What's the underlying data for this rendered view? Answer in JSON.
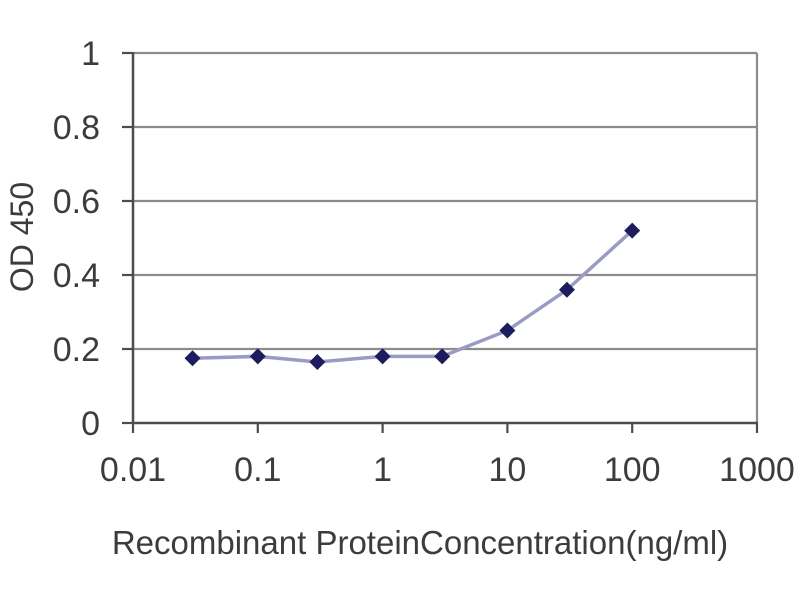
{
  "chart_data": {
    "type": "line",
    "title": "",
    "xlabel": "Recombinant ProteinConcentration(ng/ml)",
    "ylabel": "OD 450",
    "x_scale": "log",
    "y_scale": "linear",
    "xlim": [
      0.01,
      1000
    ],
    "ylim": [
      0,
      1
    ],
    "x": [
      0.03,
      0.1,
      0.3,
      1,
      3,
      10,
      30,
      100
    ],
    "y": [
      0.175,
      0.18,
      0.165,
      0.18,
      0.18,
      0.25,
      0.36,
      0.52
    ],
    "x_tick_values": [
      0.01,
      0.1,
      1,
      10,
      100,
      1000
    ],
    "x_tick_labels": [
      "0.01",
      "0.1",
      "1",
      "10",
      "100",
      "1000"
    ],
    "y_tick_values": [
      0,
      0.2,
      0.4,
      0.6,
      0.8,
      1
    ],
    "y_tick_labels": [
      "0",
      "0.2",
      "0.4",
      "0.6",
      "0.8",
      "1"
    ],
    "grid": "horizontal",
    "legend": "none",
    "marker_shape": "diamond",
    "colors": {
      "background": "#ffffff",
      "marker": "#1c1c5e",
      "line": "#9a9bc4",
      "grid": "#8c8c8c",
      "axis": "#4d4d4d",
      "text": "#3c3c3c"
    }
  }
}
